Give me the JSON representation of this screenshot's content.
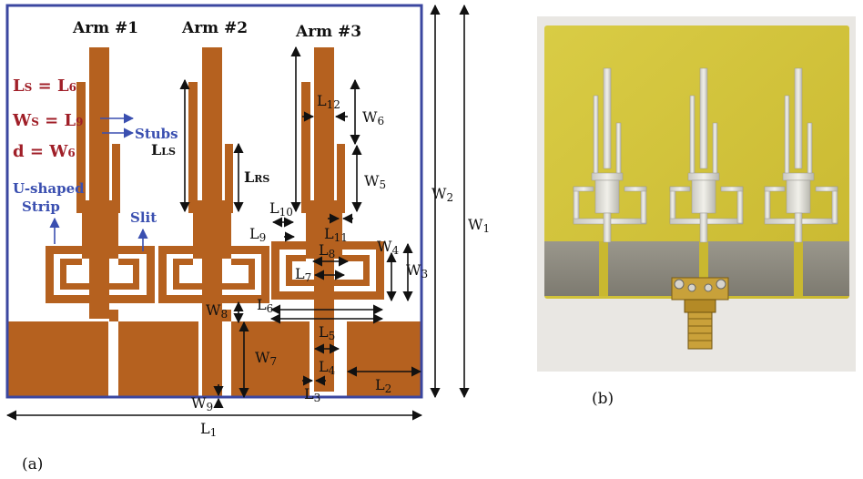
{
  "arms": [
    "Arm #1",
    "Arm #2",
    "Arm #3"
  ],
  "annotations": {
    "ls_eq": {
      "main": "L",
      "sub": "S",
      "rest": " = L",
      "num": "6"
    },
    "ws_eq": {
      "main": "W",
      "sub": "S",
      "rest": " = L",
      "num": "9"
    },
    "d_eq": {
      "main": "d = W",
      "num": "6"
    },
    "stubs": "Stubs",
    "u_shaped_1": "U-shaped",
    "u_shaped_2": "Strip",
    "slit": "Slit"
  },
  "dims": {
    "lls": {
      "main": "L",
      "sub": "LS"
    },
    "lrs": {
      "main": "L",
      "sub": "RS"
    },
    "l12": {
      "main": "L",
      "sub": "12"
    },
    "w6": {
      "main": "W",
      "sub": "6"
    },
    "w5": {
      "main": "W",
      "sub": "5"
    },
    "l10": {
      "main": "L",
      "sub": "10"
    },
    "l11": {
      "main": "L",
      "sub": "11"
    },
    "l9": {
      "main": "L",
      "sub": "9"
    },
    "l8": {
      "main": "L",
      "sub": "8"
    },
    "l7": {
      "main": "L",
      "sub": "7"
    },
    "w4": {
      "main": "W",
      "sub": "4"
    },
    "w3": {
      "main": "W",
      "sub": "3"
    },
    "w2": {
      "main": "W",
      "sub": "2"
    },
    "w1": {
      "main": "W",
      "sub": "1"
    },
    "w8": {
      "main": "W",
      "sub": "8"
    },
    "l6": {
      "main": "L",
      "sub": "6"
    },
    "l5": {
      "main": "L",
      "sub": "5"
    },
    "w7": {
      "main": "W",
      "sub": "7"
    },
    "l4": {
      "main": "L",
      "sub": "4"
    },
    "l3": {
      "main": "L",
      "sub": "3"
    },
    "l2": {
      "main": "L",
      "sub": "2"
    },
    "w9": {
      "main": "W",
      "sub": "9"
    },
    "l1": {
      "main": "L",
      "sub": "1"
    }
  },
  "captions": {
    "a": "(a)",
    "b": "(b)"
  },
  "colors": {
    "copper": "#b5611f",
    "frame": "#3b47a0",
    "annot_red": "#a01f28",
    "annot_blue": "#3a4fb0",
    "board": "#d6c83a",
    "ground": "#8c8a80"
  }
}
